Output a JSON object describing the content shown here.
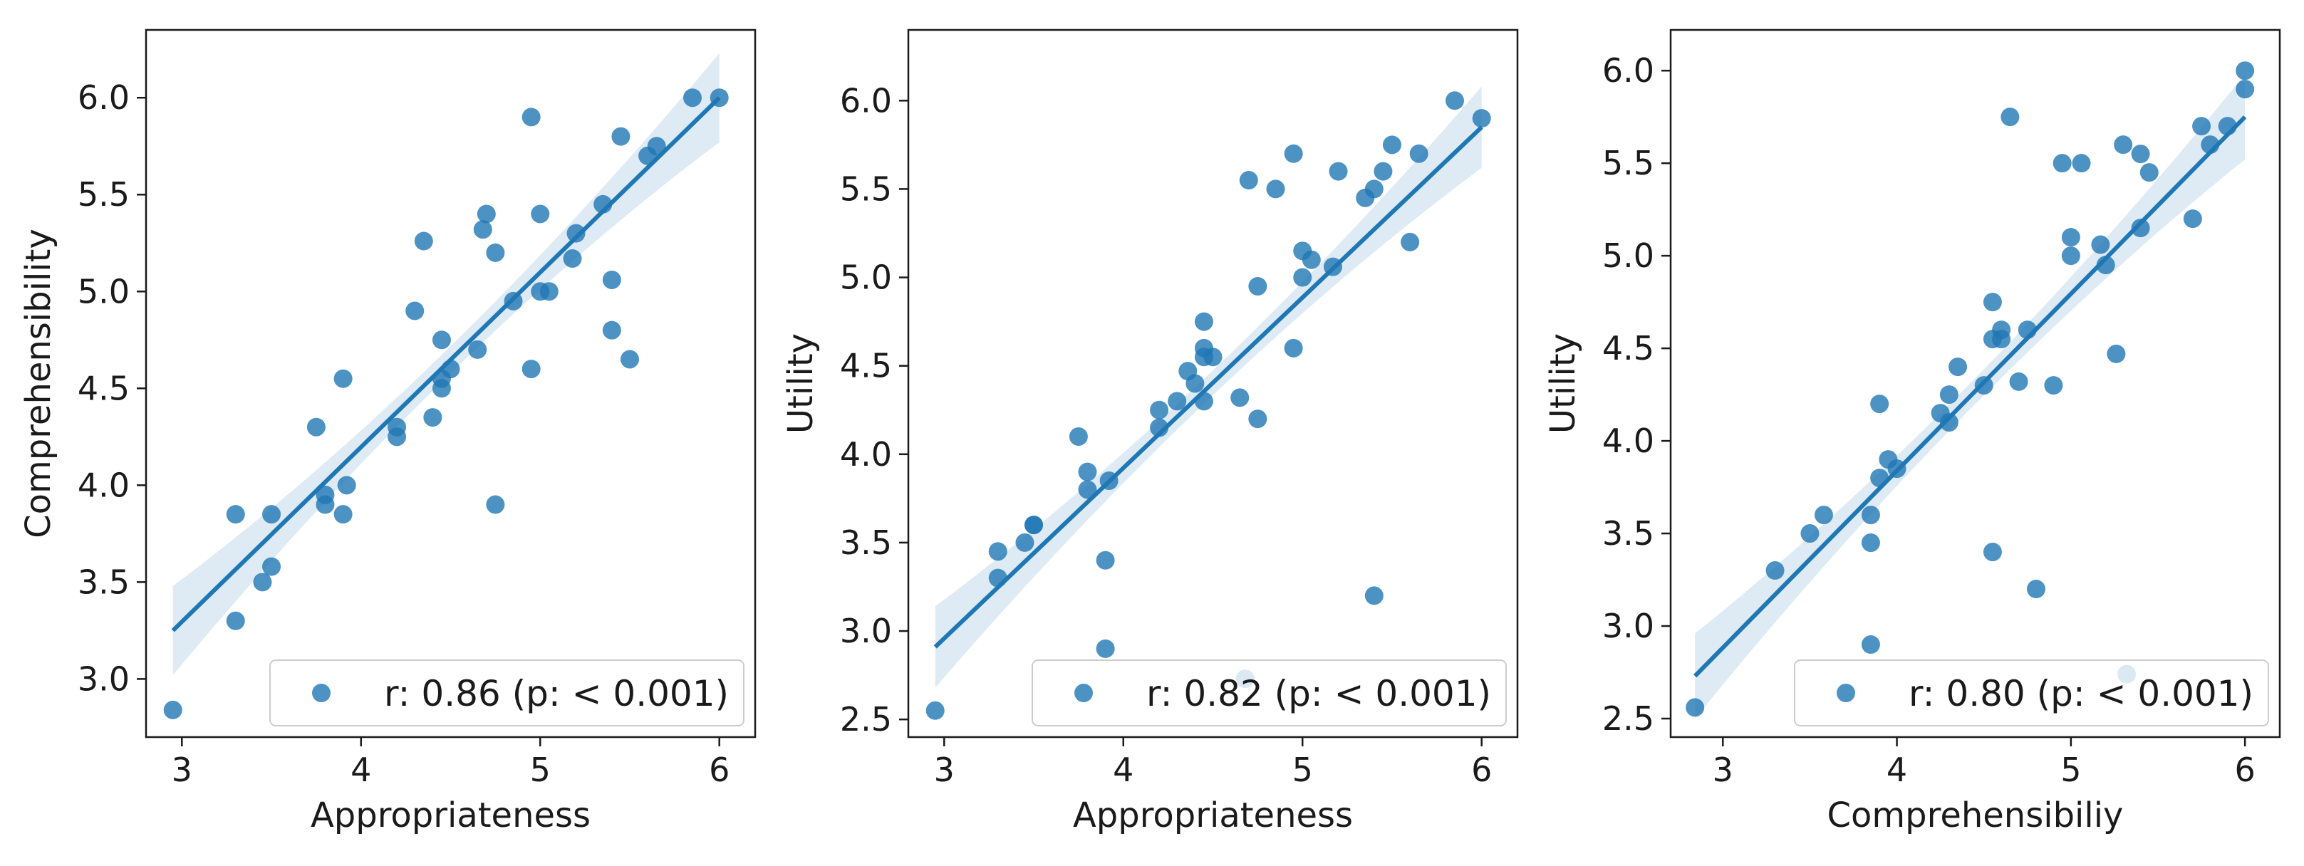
{
  "chart_data": [
    {
      "type": "scatter",
      "title": "",
      "xlabel": "Appropriateness",
      "ylabel": "Comprehensibility",
      "xlim": [
        2.8,
        6.2
      ],
      "ylim": [
        2.7,
        6.35
      ],
      "xticks": [
        3,
        4,
        5,
        6
      ],
      "yticks": [
        3.0,
        3.5,
        4.0,
        4.5,
        5.0,
        5.5,
        6.0
      ],
      "regression": {
        "x": [
          2.95,
          6.0
        ],
        "y": [
          3.25,
          6.0
        ]
      },
      "legend": {
        "label": "r: 0.86 (p: < 0.001)",
        "position": "lower right"
      },
      "points": [
        [
          2.95,
          2.84
        ],
        [
          3.3,
          3.85
        ],
        [
          3.3,
          3.3
        ],
        [
          3.45,
          3.5
        ],
        [
          3.5,
          3.85
        ],
        [
          3.5,
          3.58
        ],
        [
          3.75,
          4.3
        ],
        [
          3.8,
          3.95
        ],
        [
          3.8,
          3.9
        ],
        [
          3.9,
          4.55
        ],
        [
          3.9,
          3.85
        ],
        [
          3.92,
          4.0
        ],
        [
          4.2,
          4.3
        ],
        [
          4.2,
          4.25
        ],
        [
          4.3,
          4.9
        ],
        [
          4.35,
          5.26
        ],
        [
          4.4,
          4.35
        ],
        [
          4.45,
          4.75
        ],
        [
          4.45,
          4.55
        ],
        [
          4.45,
          4.5
        ],
        [
          4.5,
          4.6
        ],
        [
          4.65,
          4.7
        ],
        [
          4.68,
          5.32
        ],
        [
          4.7,
          5.4
        ],
        [
          4.75,
          5.2
        ],
        [
          4.75,
          3.9
        ],
        [
          4.85,
          4.95
        ],
        [
          4.95,
          5.9
        ],
        [
          4.95,
          4.6
        ],
        [
          5.0,
          5.4
        ],
        [
          5.0,
          5.0
        ],
        [
          5.05,
          5.0
        ],
        [
          5.18,
          5.17
        ],
        [
          5.2,
          5.3
        ],
        [
          5.35,
          5.45
        ],
        [
          5.4,
          5.06
        ],
        [
          5.4,
          4.8
        ],
        [
          5.45,
          5.8
        ],
        [
          5.5,
          4.65
        ],
        [
          5.6,
          5.7
        ],
        [
          5.65,
          5.75
        ],
        [
          5.85,
          6.0
        ],
        [
          6.0,
          6.0
        ]
      ]
    },
    {
      "type": "scatter",
      "title": "",
      "xlabel": "Appropriateness",
      "ylabel": "Utility",
      "xlim": [
        2.8,
        6.2
      ],
      "ylim": [
        2.4,
        6.4
      ],
      "xticks": [
        3,
        4,
        5,
        6
      ],
      "yticks": [
        2.5,
        3.0,
        3.5,
        4.0,
        4.5,
        5.0,
        5.5,
        6.0
      ],
      "regression": {
        "x": [
          2.95,
          6.0
        ],
        "y": [
          2.91,
          5.85
        ]
      },
      "legend": {
        "label": "r: 0.82 (p: < 0.001)",
        "position": "lower right"
      },
      "points": [
        [
          2.95,
          2.55
        ],
        [
          3.3,
          3.45
        ],
        [
          3.3,
          3.3
        ],
        [
          3.45,
          3.5
        ],
        [
          3.5,
          3.6
        ],
        [
          3.5,
          3.6
        ],
        [
          3.75,
          4.1
        ],
        [
          3.8,
          3.9
        ],
        [
          3.8,
          3.8
        ],
        [
          3.9,
          3.4
        ],
        [
          3.9,
          2.9
        ],
        [
          3.92,
          3.85
        ],
        [
          4.2,
          4.25
        ],
        [
          4.2,
          4.15
        ],
        [
          4.3,
          4.3
        ],
        [
          4.36,
          4.47
        ],
        [
          4.4,
          4.4
        ],
        [
          4.45,
          4.75
        ],
        [
          4.45,
          4.6
        ],
        [
          4.45,
          4.55
        ],
        [
          4.45,
          4.3
        ],
        [
          4.5,
          4.55
        ],
        [
          4.65,
          4.32
        ],
        [
          4.68,
          2.73
        ],
        [
          4.7,
          5.55
        ],
        [
          4.75,
          4.95
        ],
        [
          4.75,
          4.2
        ],
        [
          4.85,
          5.5
        ],
        [
          4.95,
          5.7
        ],
        [
          4.95,
          4.6
        ],
        [
          5.0,
          5.15
        ],
        [
          5.0,
          5.0
        ],
        [
          5.05,
          5.1
        ],
        [
          5.17,
          5.06
        ],
        [
          5.2,
          5.6
        ],
        [
          5.35,
          5.45
        ],
        [
          5.4,
          5.5
        ],
        [
          5.4,
          3.2
        ],
        [
          5.45,
          5.6
        ],
        [
          5.5,
          5.75
        ],
        [
          5.6,
          5.2
        ],
        [
          5.65,
          5.7
        ],
        [
          5.85,
          6.0
        ],
        [
          6.0,
          5.9
        ]
      ]
    },
    {
      "type": "scatter",
      "title": "",
      "xlabel": "Comprehensibiliy",
      "ylabel": "Utility",
      "xlim": [
        2.7,
        6.2
      ],
      "ylim": [
        2.4,
        6.22
      ],
      "xticks": [
        3,
        4,
        5,
        6
      ],
      "yticks": [
        2.5,
        3.0,
        3.5,
        4.0,
        4.5,
        5.0,
        5.5,
        6.0
      ],
      "regression": {
        "x": [
          2.84,
          6.0
        ],
        "y": [
          2.73,
          5.75
        ]
      },
      "legend": {
        "label": "r: 0.80 (p: < 0.001)",
        "position": "lower right"
      },
      "points": [
        [
          2.84,
          2.56
        ],
        [
          3.3,
          3.3
        ],
        [
          3.5,
          3.5
        ],
        [
          3.58,
          3.6
        ],
        [
          3.85,
          3.6
        ],
        [
          3.85,
          3.45
        ],
        [
          3.85,
          2.9
        ],
        [
          3.9,
          4.2
        ],
        [
          3.9,
          3.8
        ],
        [
          3.95,
          3.9
        ],
        [
          4.0,
          3.85
        ],
        [
          4.25,
          4.15
        ],
        [
          4.3,
          4.25
        ],
        [
          4.3,
          4.1
        ],
        [
          4.35,
          4.4
        ],
        [
          4.5,
          4.3
        ],
        [
          4.55,
          4.75
        ],
        [
          4.55,
          4.55
        ],
        [
          4.55,
          3.4
        ],
        [
          4.6,
          4.6
        ],
        [
          4.6,
          4.55
        ],
        [
          4.65,
          5.75
        ],
        [
          4.7,
          4.32
        ],
        [
          4.75,
          4.6
        ],
        [
          4.8,
          3.2
        ],
        [
          4.9,
          4.3
        ],
        [
          4.95,
          5.5
        ],
        [
          5.0,
          5.1
        ],
        [
          5.0,
          5.0
        ],
        [
          5.06,
          5.5
        ],
        [
          5.17,
          5.06
        ],
        [
          5.2,
          4.95
        ],
        [
          5.26,
          4.47
        ],
        [
          5.3,
          5.6
        ],
        [
          5.32,
          2.74
        ],
        [
          5.4,
          5.55
        ],
        [
          5.4,
          5.15
        ],
        [
          5.45,
          5.45
        ],
        [
          5.7,
          5.2
        ],
        [
          5.75,
          5.7
        ],
        [
          5.8,
          5.6
        ],
        [
          5.9,
          5.7
        ],
        [
          6.0,
          6.0
        ],
        [
          6.0,
          5.9
        ]
      ]
    }
  ],
  "colors": {
    "point": "#1f77b4",
    "line": "#1f77b4",
    "band": "#1f77b4",
    "axis": "#1a1a1a"
  }
}
